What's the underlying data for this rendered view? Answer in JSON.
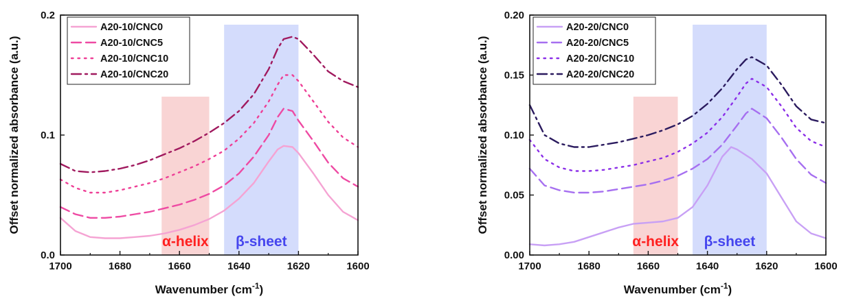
{
  "chart_data": [
    {
      "type": "line",
      "xlabel": "Wavenumber (cm",
      "xlabel_sup": "-1",
      "xlabel_end": ")",
      "ylabel": "Offset normalized absorbance (a.u.)",
      "xlim": [
        1700,
        1600
      ],
      "ylim": [
        0,
        0.2
      ],
      "x_ticks": [
        "1700",
        "1680",
        "1660",
        "1640",
        "1620",
        "1600"
      ],
      "y_ticks": [
        "0.0",
        "0.1",
        "0.2"
      ],
      "y_tick_values": [
        0,
        0.1,
        0.2
      ],
      "regions": [
        {
          "label": "α-helix",
          "from": 1666,
          "to": 1650,
          "ymax": 0.132,
          "color": "#f8c9c9",
          "text_color": "#ff2020"
        },
        {
          "label": "β-sheet",
          "from": 1645,
          "to": 1620,
          "ymax": 0.192,
          "color": "#c9d3fb",
          "text_color": "#4545ee"
        }
      ],
      "legend_position": "top-left",
      "series": [
        {
          "name": "A20-10/CNC0",
          "style": "solid",
          "color": "#f5a3d3",
          "x": [
            1700,
            1695,
            1690,
            1685,
            1680,
            1675,
            1670,
            1665,
            1660,
            1655,
            1650,
            1645,
            1640,
            1635,
            1630,
            1627,
            1625,
            1622,
            1620,
            1615,
            1610,
            1605,
            1600
          ],
          "y": [
            0.031,
            0.02,
            0.015,
            0.014,
            0.014,
            0.015,
            0.016,
            0.018,
            0.021,
            0.025,
            0.03,
            0.037,
            0.047,
            0.06,
            0.078,
            0.088,
            0.091,
            0.09,
            0.085,
            0.068,
            0.05,
            0.036,
            0.029
          ]
        },
        {
          "name": "A20-10/CNC5",
          "style": "dashed",
          "color": "#ee4aa3",
          "x": [
            1700,
            1695,
            1690,
            1685,
            1680,
            1675,
            1670,
            1665,
            1660,
            1655,
            1650,
            1645,
            1640,
            1635,
            1630,
            1627,
            1625,
            1622,
            1620,
            1615,
            1610,
            1605,
            1600
          ],
          "y": [
            0.04,
            0.034,
            0.031,
            0.031,
            0.032,
            0.034,
            0.036,
            0.039,
            0.042,
            0.046,
            0.051,
            0.058,
            0.068,
            0.082,
            0.1,
            0.115,
            0.122,
            0.12,
            0.112,
            0.095,
            0.077,
            0.064,
            0.057
          ]
        },
        {
          "name": "A20-10/CNC10",
          "style": "dotted",
          "color": "#ee3f96",
          "x": [
            1700,
            1695,
            1690,
            1685,
            1680,
            1675,
            1670,
            1665,
            1660,
            1655,
            1650,
            1645,
            1640,
            1635,
            1630,
            1627,
            1625,
            1622,
            1620,
            1615,
            1610,
            1605,
            1600
          ],
          "y": [
            0.063,
            0.056,
            0.052,
            0.052,
            0.054,
            0.057,
            0.06,
            0.064,
            0.069,
            0.074,
            0.08,
            0.087,
            0.097,
            0.11,
            0.128,
            0.142,
            0.15,
            0.15,
            0.145,
            0.128,
            0.111,
            0.098,
            0.09
          ]
        },
        {
          "name": "A20-10/CNC20",
          "style": "dashdot",
          "color": "#a0195e",
          "x": [
            1700,
            1695,
            1690,
            1685,
            1680,
            1675,
            1670,
            1665,
            1660,
            1655,
            1650,
            1645,
            1640,
            1635,
            1630,
            1627,
            1625,
            1622,
            1620,
            1615,
            1610,
            1605,
            1600
          ],
          "y": [
            0.076,
            0.07,
            0.069,
            0.07,
            0.072,
            0.075,
            0.079,
            0.084,
            0.089,
            0.095,
            0.102,
            0.11,
            0.12,
            0.134,
            0.155,
            0.172,
            0.18,
            0.182,
            0.18,
            0.167,
            0.153,
            0.145,
            0.14
          ]
        }
      ]
    },
    {
      "type": "line",
      "xlabel": "Wavenumber (cm",
      "xlabel_sup": "-1",
      "xlabel_end": ")",
      "ylabel": "Offset normalized absorbance (a.u.)",
      "xlim": [
        1700,
        1600
      ],
      "ylim": [
        0,
        0.2
      ],
      "x_ticks": [
        "1700",
        "1680",
        "1660",
        "1640",
        "1620",
        "1600"
      ],
      "y_ticks": [
        "0.00",
        "0.05",
        "0.10",
        "0.15",
        "0.20"
      ],
      "y_tick_values": [
        0,
        0.05,
        0.1,
        0.15,
        0.2
      ],
      "regions": [
        {
          "label": "α-helix",
          "from": 1665,
          "to": 1650,
          "ymax": 0.132,
          "color": "#f8c9c9",
          "text_color": "#ff2020"
        },
        {
          "label": "β-sheet",
          "from": 1645,
          "to": 1620,
          "ymax": 0.192,
          "color": "#c9d3fb",
          "text_color": "#4545ee"
        }
      ],
      "legend_position": "top-left",
      "series": [
        {
          "name": "A20-20/CNC0",
          "style": "solid",
          "color": "#c8a0f5",
          "x": [
            1700,
            1695,
            1690,
            1685,
            1680,
            1675,
            1670,
            1665,
            1660,
            1655,
            1650,
            1645,
            1640,
            1635,
            1632,
            1630,
            1625,
            1620,
            1615,
            1610,
            1605,
            1600
          ],
          "y": [
            0.009,
            0.008,
            0.009,
            0.011,
            0.015,
            0.019,
            0.023,
            0.026,
            0.027,
            0.028,
            0.031,
            0.04,
            0.058,
            0.082,
            0.09,
            0.088,
            0.08,
            0.068,
            0.048,
            0.028,
            0.018,
            0.014
          ]
        },
        {
          "name": "A20-20/CNC5",
          "style": "dashed",
          "color": "#a66ff0",
          "x": [
            1700,
            1695,
            1690,
            1685,
            1680,
            1675,
            1670,
            1665,
            1660,
            1655,
            1650,
            1645,
            1640,
            1635,
            1630,
            1627,
            1625,
            1620,
            1615,
            1610,
            1605,
            1600
          ],
          "y": [
            0.072,
            0.058,
            0.054,
            0.052,
            0.052,
            0.053,
            0.055,
            0.057,
            0.059,
            0.062,
            0.066,
            0.072,
            0.08,
            0.092,
            0.108,
            0.118,
            0.122,
            0.114,
            0.098,
            0.08,
            0.067,
            0.06
          ]
        },
        {
          "name": "A20-20/CNC10",
          "style": "dotted",
          "color": "#8b2ee8",
          "x": [
            1700,
            1695,
            1690,
            1685,
            1680,
            1675,
            1670,
            1665,
            1660,
            1655,
            1650,
            1645,
            1640,
            1635,
            1630,
            1627,
            1625,
            1620,
            1615,
            1610,
            1605,
            1600
          ],
          "y": [
            0.096,
            0.08,
            0.073,
            0.07,
            0.07,
            0.071,
            0.073,
            0.075,
            0.078,
            0.081,
            0.086,
            0.093,
            0.102,
            0.115,
            0.132,
            0.143,
            0.147,
            0.14,
            0.124,
            0.106,
            0.095,
            0.09
          ]
        },
        {
          "name": "A20-20/CNC20",
          "style": "dashdot",
          "color": "#2a1a5e",
          "x": [
            1700,
            1695,
            1690,
            1685,
            1680,
            1675,
            1670,
            1665,
            1660,
            1655,
            1650,
            1645,
            1640,
            1635,
            1630,
            1627,
            1625,
            1620,
            1615,
            1610,
            1605,
            1600
          ],
          "y": [
            0.125,
            0.1,
            0.093,
            0.09,
            0.09,
            0.092,
            0.094,
            0.097,
            0.1,
            0.104,
            0.109,
            0.116,
            0.126,
            0.139,
            0.155,
            0.163,
            0.165,
            0.158,
            0.142,
            0.124,
            0.113,
            0.11
          ]
        }
      ]
    }
  ]
}
